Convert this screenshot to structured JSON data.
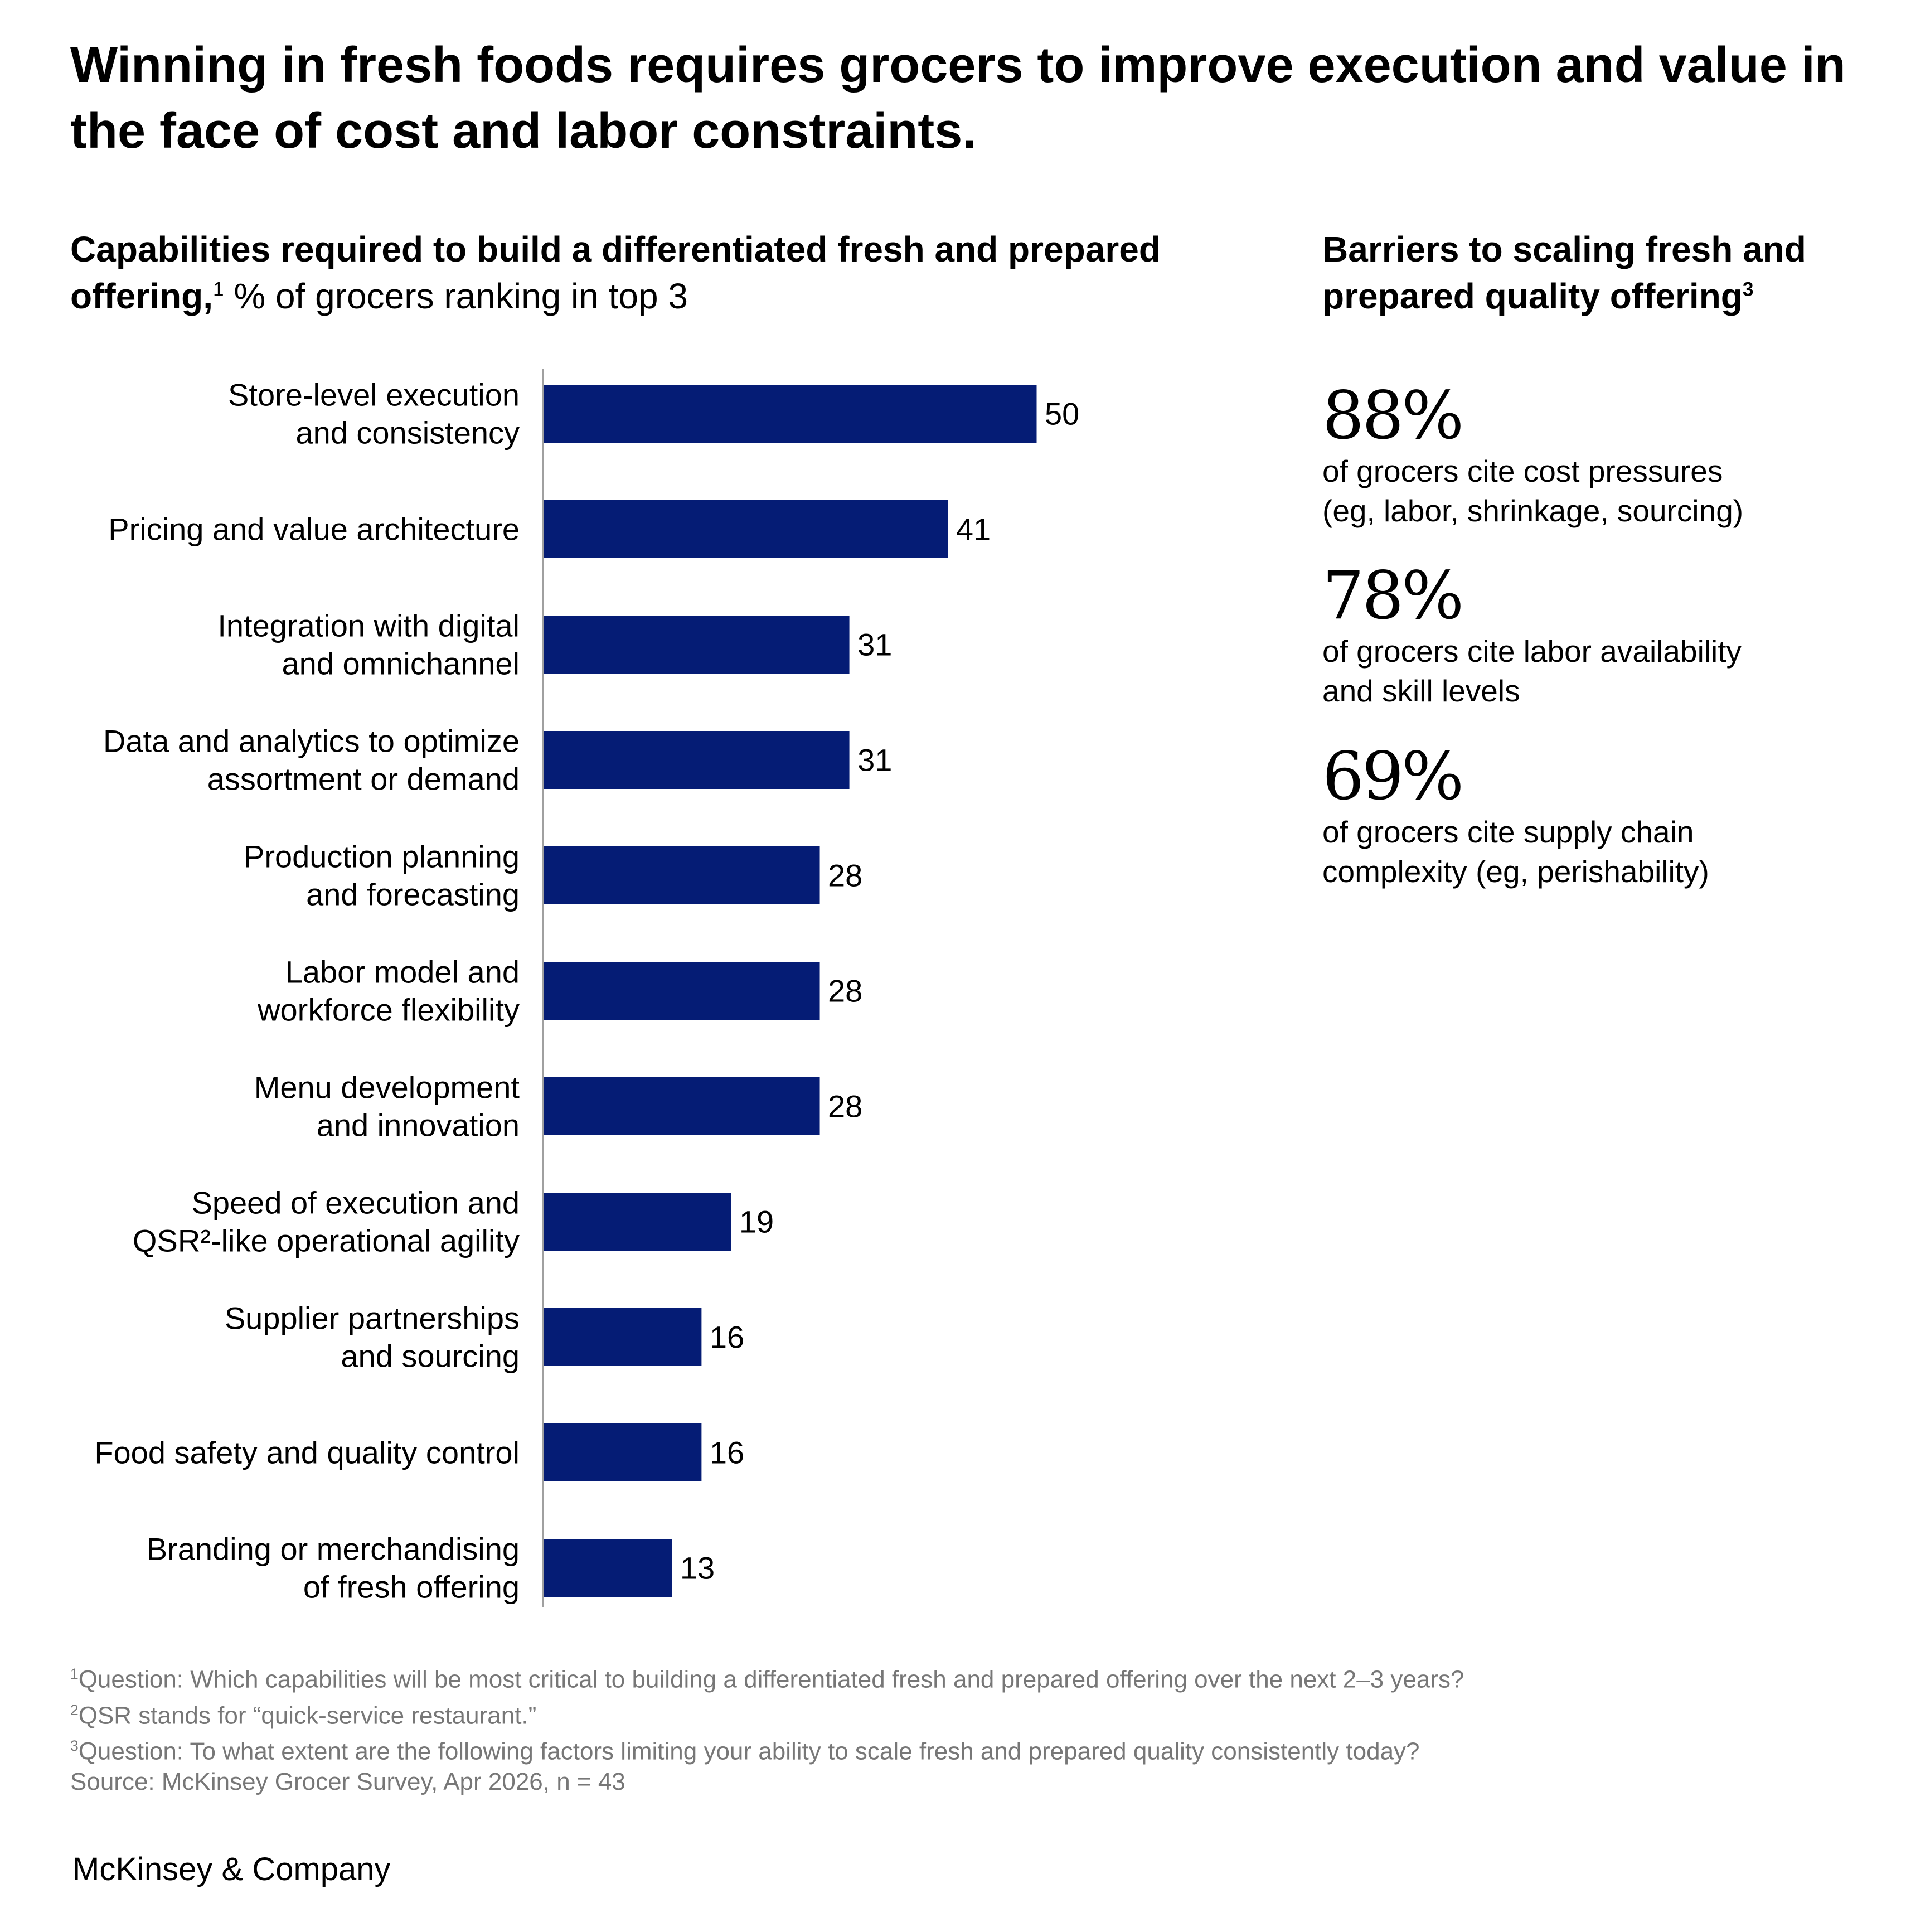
{
  "title": "Winning in fresh foods requires grocers to improve execution and value in the face of cost and labor constraints.",
  "left_panel": {
    "subtitle_bold": "Capabilities required to build a differentiated fresh and prepared offering,",
    "subtitle_sup": "1",
    "subtitle_rest": " % of grocers ranking in top 3"
  },
  "right_panel": {
    "title": "Barriers to scaling fresh and prepared quality offering",
    "title_sup": "3",
    "stats": [
      {
        "value": "88%",
        "line1": "of grocers cite cost pressures",
        "line2": "(eg, labor, shrinkage, sourcing)"
      },
      {
        "value": "78%",
        "line1": "of grocers cite labor availability",
        "line2": "and skill levels"
      },
      {
        "value": "69%",
        "line1": "of grocers cite supply chain",
        "line2": "complexity (eg, perishability)"
      }
    ]
  },
  "chart_data": {
    "type": "bar",
    "orientation": "horizontal",
    "unit": "% of grocers ranking in top 3",
    "bar_color": "#051c75",
    "xlim": [
      0,
      50
    ],
    "grid": false,
    "categories": [
      [
        "Store-level execution",
        "and consistency"
      ],
      [
        "Pricing and value architecture"
      ],
      [
        "Integration with digital",
        "and omnichannel"
      ],
      [
        "Data and analytics to optimize",
        "assortment or demand"
      ],
      [
        "Production planning",
        "and forecasting"
      ],
      [
        "Labor model and",
        "workforce flexibility"
      ],
      [
        "Menu development",
        "and innovation"
      ],
      [
        "Speed of execution and",
        "QSR²-like operational agility"
      ],
      [
        "Supplier partnerships",
        "and sourcing"
      ],
      [
        "Food safety and quality control"
      ],
      [
        "Branding or merchandising",
        "of fresh offering"
      ]
    ],
    "values": [
      50,
      41,
      31,
      31,
      28,
      28,
      28,
      19,
      16,
      16,
      13
    ]
  },
  "footnotes": [
    {
      "sup": "1",
      "text": "Question: Which capabilities will be most critical to building a differentiated fresh and prepared offering over the next 2–3 years?"
    },
    {
      "sup": "2",
      "text": "QSR stands for “quick-service restaurant.”"
    },
    {
      "sup": "3",
      "text": "Question: To what extent are the following factors limiting your ability to scale fresh and prepared quality consistently today?"
    },
    {
      "sup": "",
      "text": " Source: McKinsey Grocer Survey, Apr 2026, n = 43"
    }
  ],
  "brand": "McKinsey & Company"
}
